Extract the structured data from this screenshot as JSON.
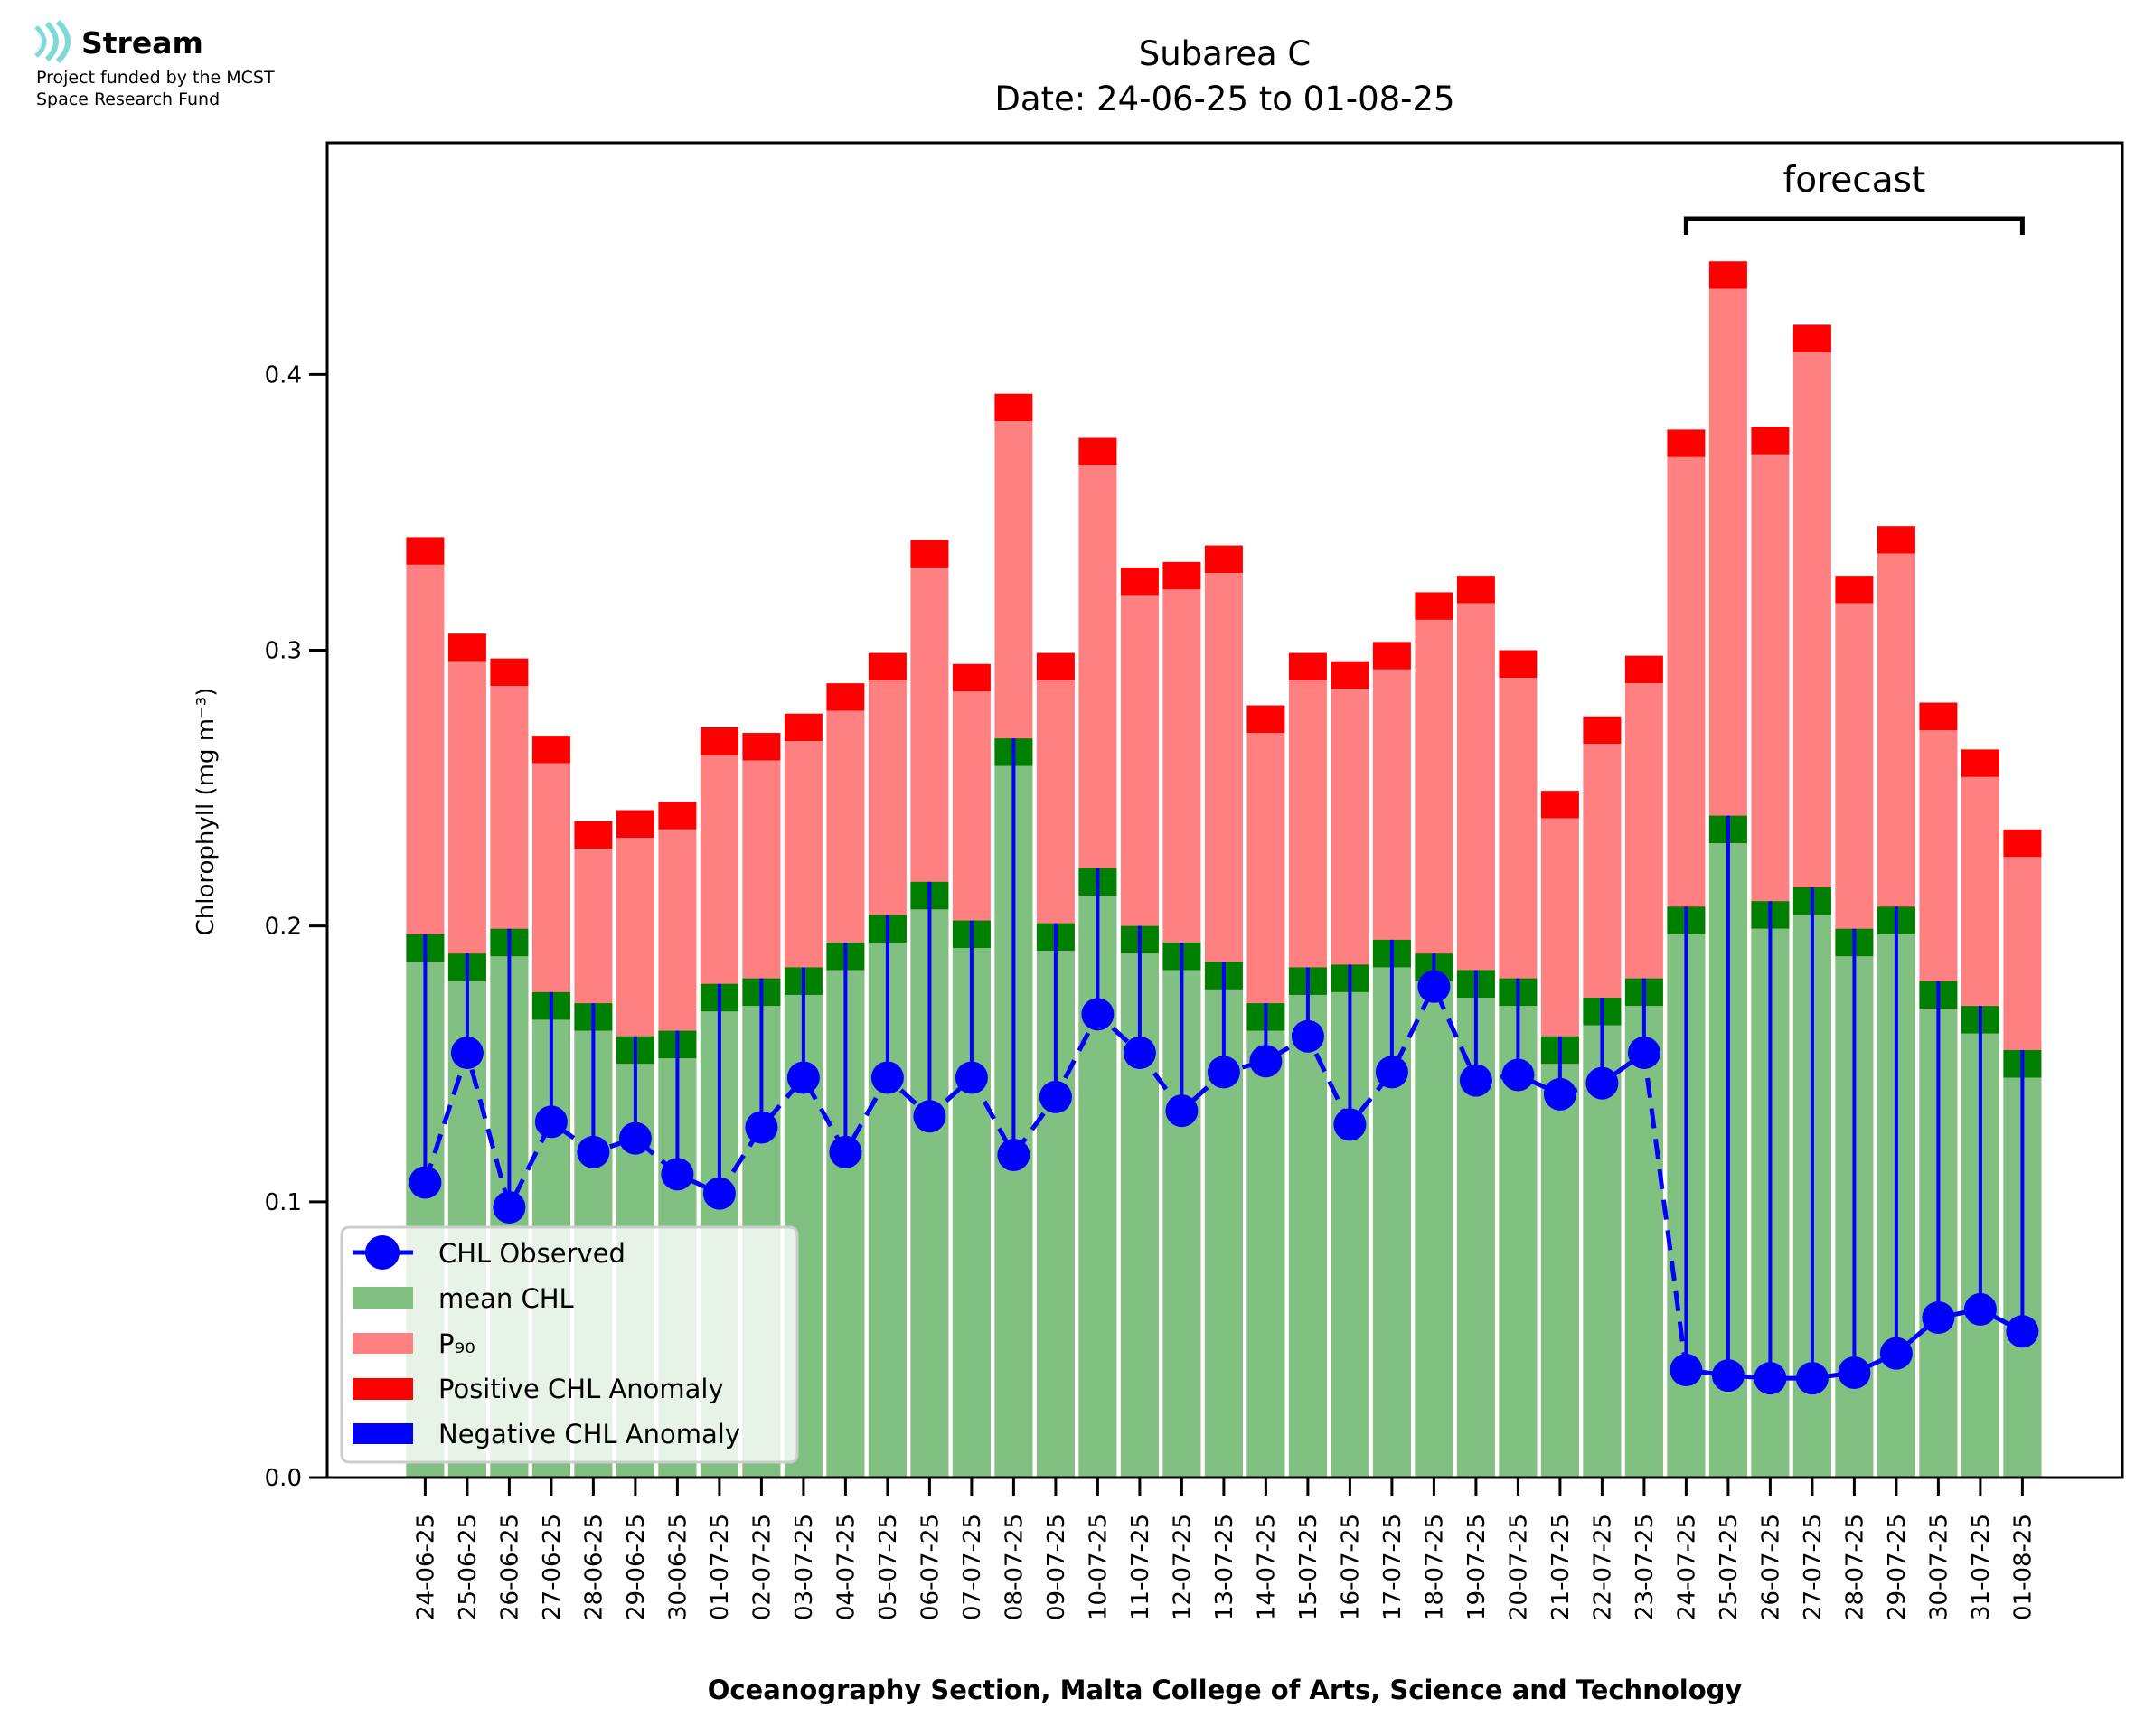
{
  "logo": {
    "name": "Stream",
    "subtitle_line1": "Project funded by the MCST",
    "subtitle_line2": "Space Research Fund",
    "icon": "stream-waves-icon",
    "color": "#7fd9d6"
  },
  "chart_data": {
    "type": "bar",
    "title_line1": "Subarea C",
    "title_line2": "Date: 24-06-25 to 01-08-25",
    "xlabel": "Oceanography Section, Malta College of Arts, Science and Technology",
    "ylabel": "Chlorophyll (mg m⁻³)",
    "ylim": [
      0,
      0.484
    ],
    "yticks": [
      "0.0",
      "0.1",
      "0.2",
      "0.3",
      "0.4"
    ],
    "ytick_values": [
      0.0,
      0.1,
      0.2,
      0.3,
      0.4
    ],
    "grid": false,
    "legend_position": "lower-left",
    "annotation": {
      "text": "forecast",
      "from_category": "24-07-25",
      "to_category": "01-08-25"
    },
    "anomaly_band": 0.01,
    "categories": [
      "24-06-25",
      "25-06-25",
      "26-06-25",
      "27-06-25",
      "28-06-25",
      "29-06-25",
      "30-06-25",
      "01-07-25",
      "02-07-25",
      "03-07-25",
      "04-07-25",
      "05-07-25",
      "06-07-25",
      "07-07-25",
      "08-07-25",
      "09-07-25",
      "10-07-25",
      "11-07-25",
      "12-07-25",
      "13-07-25",
      "14-07-25",
      "15-07-25",
      "16-07-25",
      "17-07-25",
      "18-07-25",
      "19-07-25",
      "20-07-25",
      "21-07-25",
      "22-07-25",
      "23-07-25",
      "24-07-25",
      "25-07-25",
      "26-07-25",
      "27-07-25",
      "28-07-25",
      "29-07-25",
      "30-07-25",
      "31-07-25",
      "01-08-25"
    ],
    "forecast_start_index": 30,
    "series": [
      {
        "name": "CHL Observed",
        "type": "line-marker",
        "color": "#0000ff",
        "values": [
          0.107,
          0.154,
          0.098,
          0.129,
          0.118,
          0.123,
          0.11,
          0.103,
          0.127,
          0.145,
          0.118,
          0.145,
          0.131,
          0.145,
          0.117,
          0.138,
          0.168,
          0.154,
          0.133,
          0.147,
          0.151,
          0.16,
          0.128,
          0.147,
          0.178,
          0.144,
          0.146,
          0.139,
          0.143,
          0.154,
          0.039,
          0.037,
          0.036,
          0.036,
          0.038,
          0.045,
          0.058,
          0.061,
          0.053
        ]
      },
      {
        "name": "mean CHL",
        "type": "bar",
        "color": "#80c080",
        "values": [
          0.187,
          0.18,
          0.189,
          0.166,
          0.162,
          0.15,
          0.152,
          0.169,
          0.171,
          0.175,
          0.184,
          0.194,
          0.206,
          0.192,
          0.258,
          0.191,
          0.211,
          0.19,
          0.184,
          0.177,
          0.162,
          0.175,
          0.176,
          0.185,
          0.18,
          0.174,
          0.171,
          0.15,
          0.164,
          0.171,
          0.197,
          0.23,
          0.199,
          0.204,
          0.189,
          0.197,
          0.17,
          0.161,
          0.145
        ]
      },
      {
        "name": "P₉₀",
        "type": "bar",
        "color": "#ff8080",
        "values": [
          0.331,
          0.296,
          0.287,
          0.259,
          0.228,
          0.232,
          0.235,
          0.262,
          0.26,
          0.267,
          0.278,
          0.289,
          0.33,
          0.285,
          0.383,
          0.289,
          0.367,
          0.32,
          0.322,
          0.328,
          0.27,
          0.289,
          0.286,
          0.293,
          0.311,
          0.317,
          0.29,
          0.239,
          0.266,
          0.288,
          0.37,
          0.431,
          0.371,
          0.408,
          0.317,
          0.335,
          0.271,
          0.254,
          0.225
        ]
      },
      {
        "name": "Positive CHL Anomaly",
        "type": "bar",
        "color": "#ff0000"
      },
      {
        "name": "Negative CHL Anomaly",
        "type": "bar",
        "color": "#0000ff"
      }
    ],
    "mean_band_color": "#008000"
  }
}
